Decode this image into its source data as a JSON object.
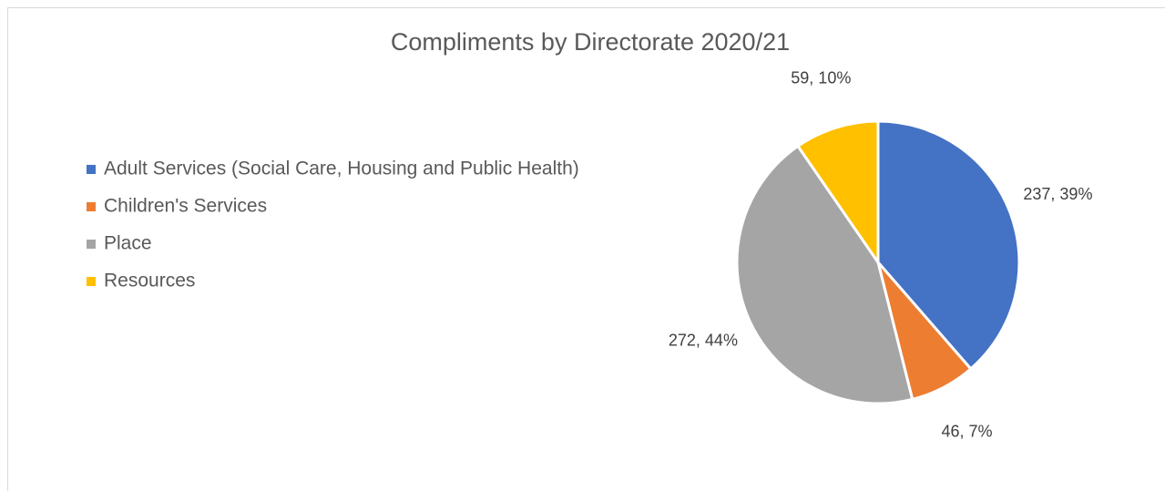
{
  "chart_data": {
    "type": "pie",
    "title": "Compliments by Directorate 2020/21",
    "categories": [
      "Adult Services (Social Care, Housing and Public Health)",
      "Children's Services",
      "Place",
      "Resources"
    ],
    "values": [
      237,
      46,
      272,
      59
    ],
    "value_labels": [
      "237, 39%",
      "46, 7%",
      "272, 44%",
      "59, 10%"
    ],
    "colors": [
      "#4472c4",
      "#ed7d31",
      "#a5a5a5",
      "#ffc000"
    ],
    "legend": "left"
  }
}
